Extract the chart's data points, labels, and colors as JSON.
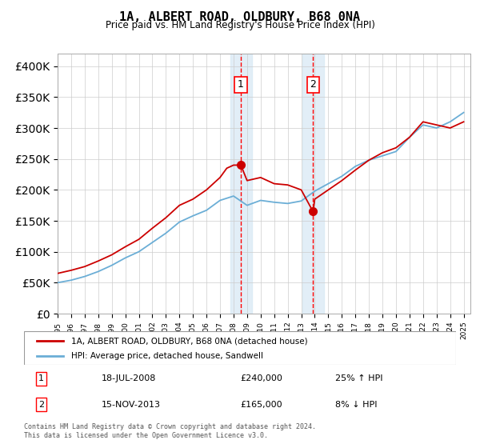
{
  "title": "1A, ALBERT ROAD, OLDBURY, B68 0NA",
  "subtitle": "Price paid vs. HM Land Registry's House Price Index (HPI)",
  "hpi_label": "HPI: Average price, detached house, Sandwell",
  "price_label": "1A, ALBERT ROAD, OLDBURY, B68 0NA (detached house)",
  "footer": "Contains HM Land Registry data © Crown copyright and database right 2024.\nThis data is licensed under the Open Government Licence v3.0.",
  "sale1_date": "18-JUL-2008",
  "sale1_price": 240000,
  "sale1_hpi": "25% ↑ HPI",
  "sale1_year": 2008.54,
  "sale2_date": "15-NOV-2013",
  "sale2_price": 165000,
  "sale2_hpi": "8% ↓ HPI",
  "sale2_year": 2013.87,
  "ylim": [
    0,
    420000
  ],
  "xlim": [
    1995,
    2025.5
  ],
  "hpi_color": "#6baed6",
  "price_color": "#cc0000",
  "shade_color": "#d6e8f5",
  "hpi_x": [
    1995,
    1996,
    1997,
    1998,
    1999,
    2000,
    2001,
    2002,
    2003,
    2004,
    2005,
    2006,
    2007,
    2008,
    2009,
    2010,
    2011,
    2012,
    2013,
    2014,
    2015,
    2016,
    2017,
    2018,
    2019,
    2020,
    2021,
    2022,
    2023,
    2024,
    2025
  ],
  "hpi_y": [
    50000,
    54000,
    60000,
    68000,
    78000,
    90000,
    100000,
    115000,
    130000,
    148000,
    158000,
    167000,
    183000,
    190000,
    175000,
    183000,
    180000,
    178000,
    182000,
    198000,
    210000,
    222000,
    238000,
    248000,
    255000,
    262000,
    285000,
    305000,
    300000,
    310000,
    325000
  ],
  "price_x": [
    1995,
    1996,
    1997,
    1998,
    1999,
    2000,
    2001,
    2002,
    2003,
    2004,
    2005,
    2006,
    2007,
    2007.5,
    2008,
    2008.54,
    2009,
    2010,
    2011,
    2012,
    2013,
    2013.87,
    2014,
    2015,
    2016,
    2017,
    2018,
    2019,
    2020,
    2021,
    2022,
    2023,
    2024,
    2025
  ],
  "price_y": [
    65000,
    70000,
    76000,
    85000,
    95000,
    108000,
    120000,
    138000,
    155000,
    175000,
    185000,
    200000,
    220000,
    235000,
    240000,
    240000,
    215000,
    220000,
    210000,
    208000,
    200000,
    165000,
    185000,
    200000,
    215000,
    232000,
    248000,
    260000,
    268000,
    285000,
    310000,
    305000,
    300000,
    310000
  ]
}
